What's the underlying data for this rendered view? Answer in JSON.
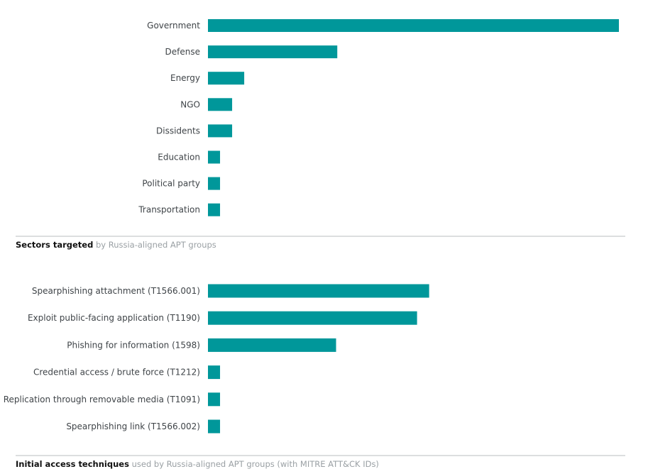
{
  "chart_data": [
    {
      "type": "bar",
      "orientation": "horizontal",
      "title": "Sectors targeted",
      "subtitle": "by Russia-aligned APT groups",
      "categories": [
        "Government",
        "Defense",
        "Energy",
        "NGO",
        "Dissidents",
        "Education",
        "Political party",
        "Transportation"
      ],
      "values": [
        34,
        10.7,
        3,
        2,
        2,
        1,
        1,
        1
      ],
      "xlim": [
        0,
        34
      ],
      "grid": false,
      "bar_color": "#00979a"
    },
    {
      "type": "bar",
      "orientation": "horizontal",
      "title": "Initial access techniques",
      "subtitle": "used by Russia-aligned APT groups (with MITRE ATT&CK IDs)",
      "categories": [
        "Spearphishing attachment (T1566.001)",
        "Exploit public-facing application (T1190)",
        "Phishing for information (1598)",
        "Credential access / brute force (T1212)",
        "Replication through removable media (T1091)",
        "Spearphishing link (T1566.002)"
      ],
      "values": [
        18.3,
        17.3,
        10.6,
        1,
        1,
        1
      ],
      "xlim": [
        0,
        34
      ],
      "grid": false,
      "bar_color": "#00979a"
    }
  ]
}
